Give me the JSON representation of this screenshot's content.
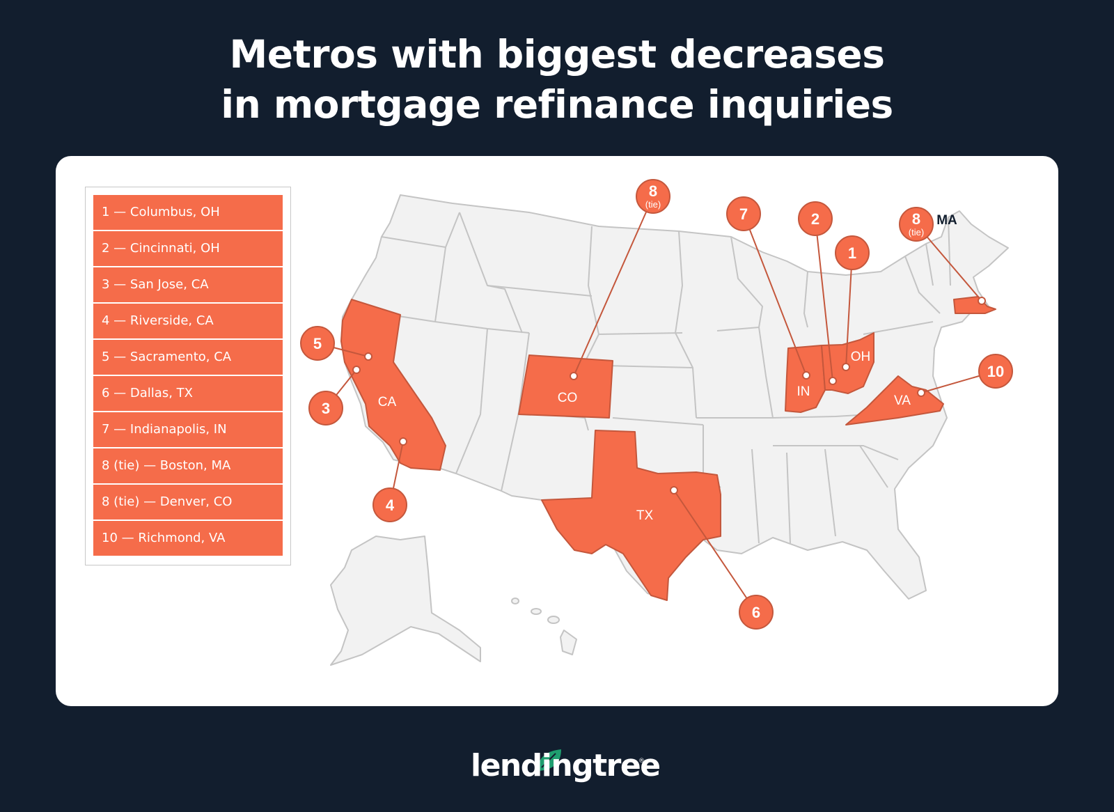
{
  "title": {
    "line1": "Metros with biggest decreases",
    "line2": "in mortgage refinance inquiries"
  },
  "legend": {
    "items": [
      "1 — Columbus, OH",
      "2 — Cincinnati, OH",
      "3 — San Jose, CA",
      "4 — Riverside, CA",
      "5 — Sacramento, CA",
      "6 — Dallas, TX",
      "7 — Indianapolis, IN",
      "8 (tie) — Boston, MA",
      "8 (tie) — Denver, CO",
      "10 — Richmond, VA"
    ]
  },
  "map": {
    "highlight_color": "#f56c4a",
    "base_color": "#f2f2f2",
    "border_color": "#c4c4c4",
    "state_labels": {
      "ca": "CA",
      "co": "CO",
      "tx": "TX",
      "in": "IN",
      "oh": "OH",
      "va": "VA",
      "ma": "MA"
    },
    "markers": {
      "m1": "1",
      "m2": "2",
      "m3": "3",
      "m4": "4",
      "m5": "5",
      "m6": "6",
      "m7": "7",
      "m8co": "8",
      "m8ma": "8",
      "m10": "10",
      "tie": "(tie)"
    }
  },
  "brand": {
    "logo_text": "lendingtree",
    "registered_mark": "®",
    "leaf_color": "#1f9e6f"
  }
}
